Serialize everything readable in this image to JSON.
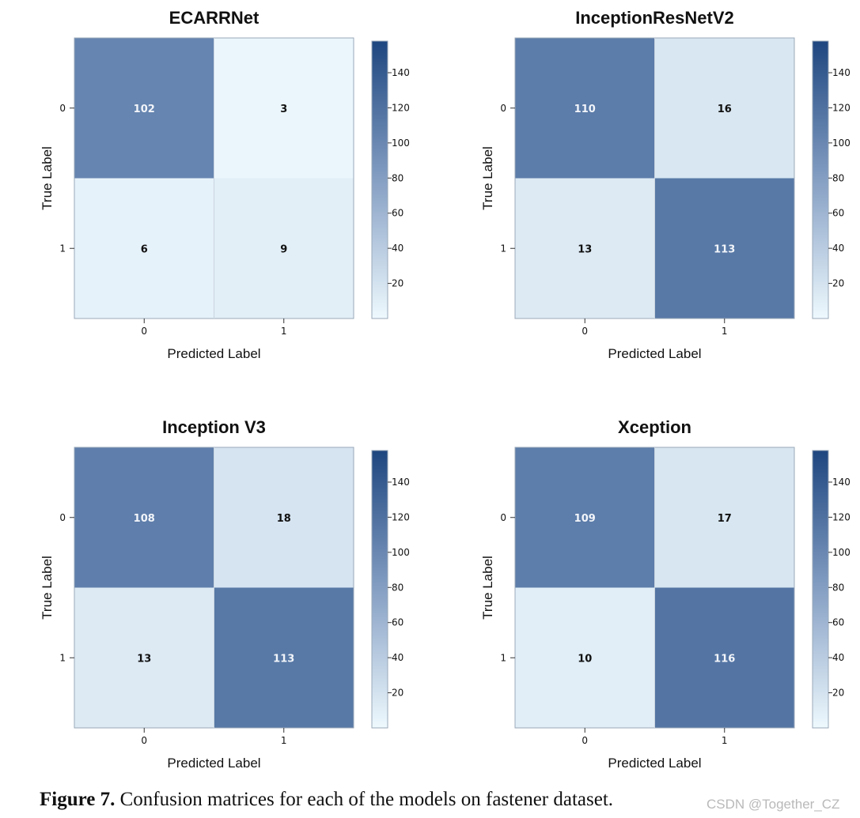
{
  "chart_data": [
    {
      "type": "heatmap",
      "title": "ECARRNet",
      "xlabel": "Predicted Label",
      "ylabel": "True Label",
      "x_categories": [
        "0",
        "1"
      ],
      "y_categories": [
        "0",
        "1"
      ],
      "matrix": [
        [
          102,
          3
        ],
        [
          6,
          9
        ]
      ],
      "colorbar": {
        "min": 0,
        "max": 158,
        "ticks": [
          20,
          40,
          60,
          80,
          100,
          120,
          140
        ]
      }
    },
    {
      "type": "heatmap",
      "title": "InceptionResNetV2",
      "xlabel": "Predicted Label",
      "ylabel": "True Label",
      "x_categories": [
        "0",
        "1"
      ],
      "y_categories": [
        "0",
        "1"
      ],
      "matrix": [
        [
          110,
          16
        ],
        [
          13,
          113
        ]
      ],
      "colorbar": {
        "min": 0,
        "max": 158,
        "ticks": [
          20,
          40,
          60,
          80,
          100,
          120,
          140
        ]
      }
    },
    {
      "type": "heatmap",
      "title": "Inception V3",
      "xlabel": "Predicted Label",
      "ylabel": "True Label",
      "x_categories": [
        "0",
        "1"
      ],
      "y_categories": [
        "0",
        "1"
      ],
      "matrix": [
        [
          108,
          18
        ],
        [
          13,
          113
        ]
      ],
      "colorbar": {
        "min": 0,
        "max": 158,
        "ticks": [
          20,
          40,
          60,
          80,
          100,
          120,
          140
        ]
      }
    },
    {
      "type": "heatmap",
      "title": "Xception",
      "xlabel": "Predicted Label",
      "ylabel": "True Label",
      "x_categories": [
        "0",
        "1"
      ],
      "y_categories": [
        "0",
        "1"
      ],
      "matrix": [
        [
          109,
          17
        ],
        [
          10,
          116
        ]
      ],
      "colorbar": {
        "min": 0,
        "max": 158,
        "ticks": [
          20,
          40,
          60,
          80,
          100,
          120,
          140
        ]
      }
    }
  ],
  "colors": {
    "low": "#eef9fe",
    "mid": "#7a96bd",
    "high": "#1e467f"
  },
  "caption": {
    "label": "Figure 7.",
    "text": " Confusion matrices for each of the models on fastener dataset."
  },
  "watermark": "CSDN @Together_CZ"
}
